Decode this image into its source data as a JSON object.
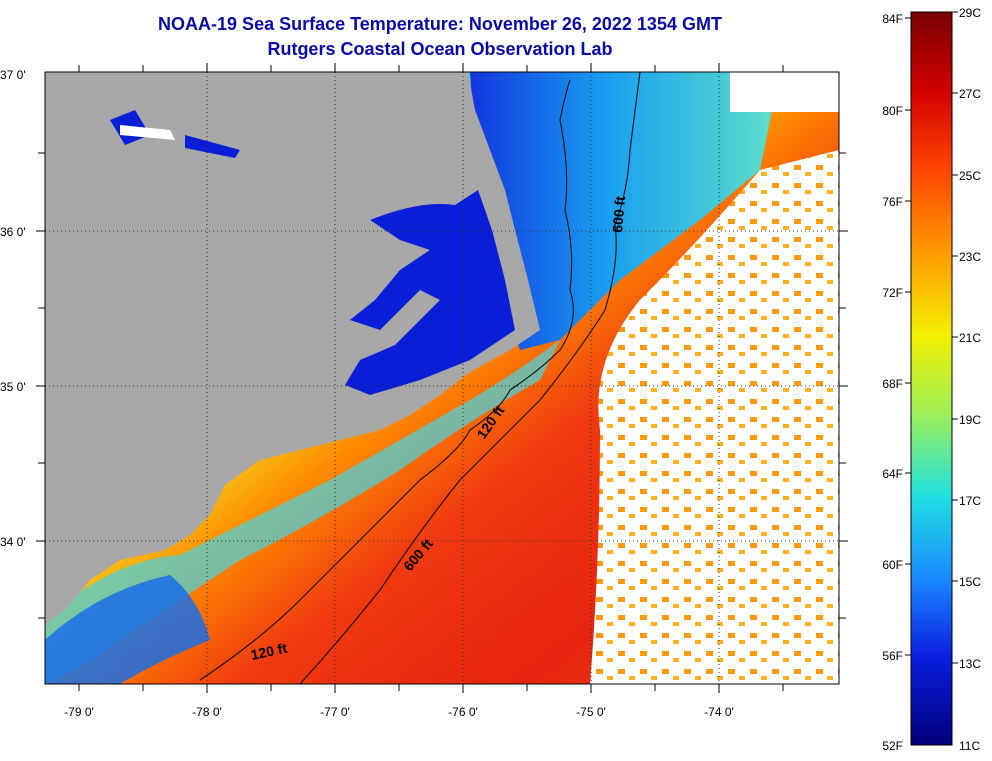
{
  "title": "NOAA-19 Sea Surface Temperature:  November 26, 2022 1354 GMT",
  "subtitle": "Rutgers Coastal Ocean Observation Lab",
  "lat_labels": [
    "37 0'",
    "36 0'",
    "35 0'",
    "34 0'"
  ],
  "lon_labels": [
    "-79 0'",
    "-78 0'",
    "-77 0'",
    "-76 0'",
    "-75 0'",
    "-74 0'"
  ],
  "contours": {
    "shallow": "120 ft",
    "deep": "600 ft"
  },
  "colorbar": {
    "fahrenheit": [
      "84F",
      "80F",
      "76F",
      "72F",
      "68F",
      "64F",
      "60F",
      "56F",
      "52F"
    ],
    "celsius": [
      "29C",
      "27C",
      "25C",
      "23C",
      "21C",
      "19C",
      "17C",
      "15C",
      "13C",
      "11C"
    ],
    "colors": [
      "#7a0000",
      "#d40000",
      "#ff4a00",
      "#ff9a00",
      "#f3f000",
      "#9cf05a",
      "#20e0e0",
      "#1a8cff",
      "#0a1ee0",
      "#00007a"
    ]
  },
  "map_colors": {
    "land": "#a8a8a8",
    "coastal_water": "#0a1ed8",
    "cloud": "#ffffff"
  }
}
